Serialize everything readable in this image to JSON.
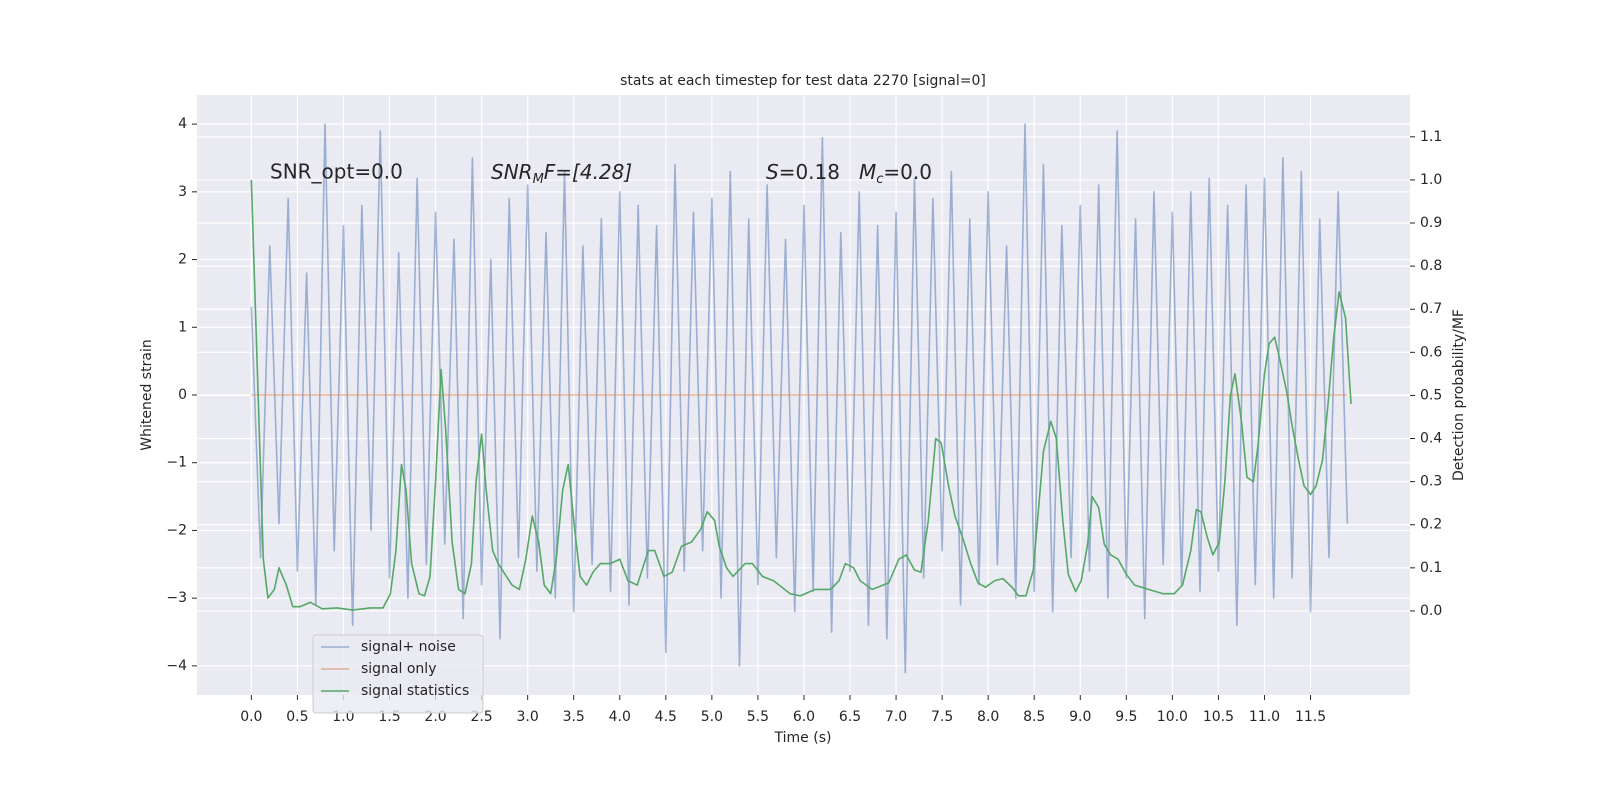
{
  "chart_data": {
    "type": "line",
    "title": "stats at each timestep for test data 2270 [signal=0]",
    "xlabel": "Time (s)",
    "ylabel": "Whitened strain",
    "y2label": "Detection probability/MF",
    "annotations": {
      "snr_opt": "SNR_opt=0.0",
      "snr_mf": [
        "SNR",
        "M",
        "F=[4.28]"
      ],
      "stats": [
        "S",
        "=0.18",
        "M",
        "c",
        "=0.0"
      ]
    },
    "xlim": [
      -0.59,
      12.58
    ],
    "ylim": [
      -4.43,
      4.43
    ],
    "y2lim": [
      -0.195,
      1.197
    ],
    "xticks": [
      {
        "value": 0,
        "label": "0.0"
      },
      0.5,
      {
        "value": 1,
        "label": "1.0"
      },
      1.5,
      {
        "value": 2,
        "label": "2.0"
      },
      2.5,
      {
        "value": 3,
        "label": "3.0"
      },
      3.5,
      {
        "value": 4,
        "label": "4.0"
      },
      4.5,
      {
        "value": 5,
        "label": "5.0"
      },
      5.5,
      {
        "value": 6,
        "label": "6.0"
      },
      6.5,
      {
        "value": 7,
        "label": "7.0"
      },
      7.5,
      {
        "value": 8,
        "label": "8.0"
      },
      8.5,
      {
        "value": 9,
        "label": "9.0"
      },
      9.5,
      {
        "value": 10,
        "label": "10.0"
      },
      10.5,
      {
        "value": 11,
        "label": "11.0"
      },
      11.5
    ],
    "yticks": [
      {
        "value": -4,
        "label": "−4"
      },
      {
        "value": -3,
        "label": "−3"
      },
      {
        "value": -2,
        "label": "−2"
      },
      {
        "value": -1,
        "label": "−1"
      },
      0,
      1,
      2,
      3,
      4
    ],
    "y2ticks": [
      {
        "value": 0,
        "label": "0.0"
      },
      0.1,
      0.2,
      0.3,
      0.4,
      0.5,
      0.6,
      0.7,
      0.8,
      0.9,
      {
        "value": 1,
        "label": "1.0"
      },
      1.1
    ],
    "grid": true,
    "legend": "lower left",
    "series": [
      {
        "name": "signal+ noise",
        "color": "#4c72b0",
        "opacity": 0.5,
        "x": [
          0,
          0.1,
          0.2,
          0.3,
          0.4,
          0.5,
          0.6,
          0.7,
          0.8,
          0.9,
          1,
          1.1,
          1.2,
          1.3,
          1.4,
          1.5,
          1.6,
          1.7,
          1.8,
          1.9,
          2,
          2.1,
          2.2,
          2.3,
          2.4,
          2.5,
          2.6,
          2.7,
          2.8,
          2.9,
          3,
          3.1,
          3.2,
          3.3,
          3.4,
          3.5,
          3.6,
          3.7,
          3.8,
          3.9,
          4,
          4.1,
          4.2,
          4.3,
          4.4,
          4.5,
          4.6,
          4.7,
          4.8,
          4.9,
          5,
          5.1,
          5.2,
          5.3,
          5.4,
          5.5,
          5.6,
          5.7,
          5.8,
          5.9,
          6,
          6.1,
          6.2,
          6.3,
          6.4,
          6.5,
          6.6,
          6.7,
          6.8,
          6.9,
          7,
          7.1,
          7.2,
          7.3,
          7.4,
          7.5,
          7.6,
          7.7,
          7.8,
          7.9,
          8,
          8.1,
          8.2,
          8.3,
          8.4,
          8.5,
          8.6,
          8.7,
          8.8,
          8.9,
          9,
          9.1,
          9.2,
          9.3,
          9.4,
          9.5,
          9.6,
          9.7,
          9.8,
          9.9,
          10,
          10.1,
          10.2,
          10.3,
          10.4,
          10.5,
          10.6,
          10.7,
          10.8,
          10.9,
          11,
          11.1,
          11.2,
          11.3,
          11.4,
          11.5,
          11.6,
          11.7,
          11.8,
          11.9
        ],
        "values": [
          1.3,
          -2.4,
          2.2,
          -1.9,
          2.9,
          -2.6,
          1.8,
          -3.1,
          4.0,
          -2.3,
          2.5,
          -3.4,
          2.8,
          -2.0,
          3.9,
          -2.7,
          2.1,
          -3.0,
          3.2,
          -2.5,
          2.7,
          -2.2,
          2.3,
          -3.3,
          3.5,
          -2.8,
          2.0,
          -3.6,
          2.9,
          -2.4,
          3.1,
          -2.6,
          2.4,
          -3.0,
          3.3,
          -3.2,
          2.2,
          -2.5,
          2.6,
          -2.9,
          3.0,
          -3.1,
          2.8,
          -2.7,
          2.5,
          -3.8,
          3.4,
          -2.6,
          2.7,
          -2.3,
          2.9,
          -3.0,
          3.3,
          -4.0,
          2.6,
          -2.8,
          3.1,
          -2.4,
          2.3,
          -3.2,
          2.8,
          -2.9,
          3.8,
          -3.5,
          2.4,
          -2.6,
          3.0,
          -3.4,
          2.5,
          -3.6,
          2.7,
          -4.1,
          3.2,
          -2.7,
          2.9,
          -2.3,
          3.3,
          -3.1,
          2.6,
          -2.8,
          3.0,
          -2.5,
          2.2,
          -3.0,
          4.0,
          -2.9,
          3.4,
          -3.2,
          2.5,
          -2.4,
          2.8,
          -2.6,
          3.1,
          -3.0,
          3.9,
          -2.7,
          2.6,
          -3.3,
          3.0,
          -2.5,
          2.7,
          -2.8,
          3.0,
          -2.9,
          3.2,
          -2.6,
          2.8,
          -3.4,
          3.1,
          -2.8,
          3.2,
          -3.0,
          3.5,
          -2.7,
          3.3,
          -3.2,
          2.6,
          -2.4,
          3.0,
          -1.9
        ]
      },
      {
        "name": "signal only",
        "color": "#dd8452",
        "opacity": 0.6,
        "x": [
          0,
          11.9
        ],
        "values": [
          0,
          0
        ]
      },
      {
        "name": "signal statistics",
        "color": "#55a868",
        "opacity": 1,
        "axis": "y2",
        "x": [
          0,
          0.13,
          0.18,
          0.25,
          0.3,
          0.38,
          0.45,
          0.53,
          0.64,
          0.77,
          0.93,
          1.1,
          1.29,
          1.43,
          1.51,
          1.57,
          1.63,
          1.68,
          1.74,
          1.82,
          1.88,
          1.94,
          2,
          2.06,
          2.11,
          2.18,
          2.25,
          2.32,
          2.39,
          2.44,
          2.5,
          2.55,
          2.62,
          2.68,
          2.74,
          2.83,
          2.91,
          2.98,
          3.05,
          3.12,
          3.18,
          3.25,
          3.31,
          3.38,
          3.44,
          3.51,
          3.57,
          3.64,
          3.71,
          3.79,
          3.9,
          4,
          4.09,
          4.19,
          4.31,
          4.38,
          4.48,
          4.57,
          4.67,
          4.78,
          4.88,
          4.95,
          5.03,
          5.08,
          5.16,
          5.23,
          5.36,
          5.44,
          5.55,
          5.67,
          5.85,
          5.96,
          6.12,
          6.29,
          6.38,
          6.45,
          6.54,
          6.61,
          6.74,
          6.92,
          7.03,
          7.11,
          7.2,
          7.27,
          7.35,
          7.43,
          7.49,
          7.57,
          7.64,
          7.73,
          7.81,
          7.89,
          7.97,
          8.07,
          8.16,
          8.26,
          8.33,
          8.41,
          8.49,
          8.6,
          8.68,
          8.74,
          8.81,
          8.87,
          8.95,
          9.01,
          9.08,
          9.13,
          9.2,
          9.26,
          9.33,
          9.41,
          9.5,
          9.59,
          9.74,
          9.9,
          10.02,
          10.11,
          10.2,
          10.26,
          10.31,
          10.38,
          10.44,
          10.51,
          10.57,
          10.63,
          10.68,
          10.75,
          10.81,
          10.88,
          10.93,
          11,
          11.05,
          11.11,
          11.16,
          11.24,
          11.3,
          11.37,
          11.43,
          11.5,
          11.56,
          11.63,
          11.69,
          11.75,
          11.81,
          11.88,
          11.94
        ],
        "values": [
          1.0,
          0.12,
          0.03,
          0.05,
          0.1,
          0.06,
          0.01,
          0.01,
          0.02,
          0.005,
          0.007,
          0.002,
          0.007,
          0.007,
          0.04,
          0.14,
          0.34,
          0.28,
          0.11,
          0.04,
          0.035,
          0.08,
          0.3,
          0.56,
          0.42,
          0.16,
          0.05,
          0.04,
          0.11,
          0.3,
          0.41,
          0.28,
          0.14,
          0.11,
          0.09,
          0.06,
          0.05,
          0.12,
          0.22,
          0.16,
          0.06,
          0.04,
          0.12,
          0.28,
          0.34,
          0.19,
          0.08,
          0.06,
          0.09,
          0.11,
          0.11,
          0.12,
          0.07,
          0.06,
          0.14,
          0.14,
          0.08,
          0.09,
          0.15,
          0.16,
          0.19,
          0.23,
          0.21,
          0.15,
          0.1,
          0.08,
          0.11,
          0.11,
          0.08,
          0.07,
          0.04,
          0.035,
          0.05,
          0.05,
          0.07,
          0.11,
          0.1,
          0.07,
          0.05,
          0.065,
          0.12,
          0.13,
          0.095,
          0.09,
          0.21,
          0.4,
          0.39,
          0.29,
          0.22,
          0.165,
          0.11,
          0.065,
          0.055,
          0.07,
          0.075,
          0.055,
          0.035,
          0.035,
          0.095,
          0.37,
          0.44,
          0.4,
          0.21,
          0.085,
          0.045,
          0.07,
          0.155,
          0.265,
          0.24,
          0.155,
          0.13,
          0.12,
          0.085,
          0.06,
          0.05,
          0.04,
          0.04,
          0.06,
          0.14,
          0.235,
          0.23,
          0.17,
          0.13,
          0.16,
          0.3,
          0.5,
          0.55,
          0.44,
          0.31,
          0.3,
          0.385,
          0.55,
          0.62,
          0.635,
          0.59,
          0.51,
          0.43,
          0.35,
          0.29,
          0.27,
          0.29,
          0.35,
          0.48,
          0.63,
          0.74,
          0.68,
          0.48
        ]
      }
    ]
  }
}
